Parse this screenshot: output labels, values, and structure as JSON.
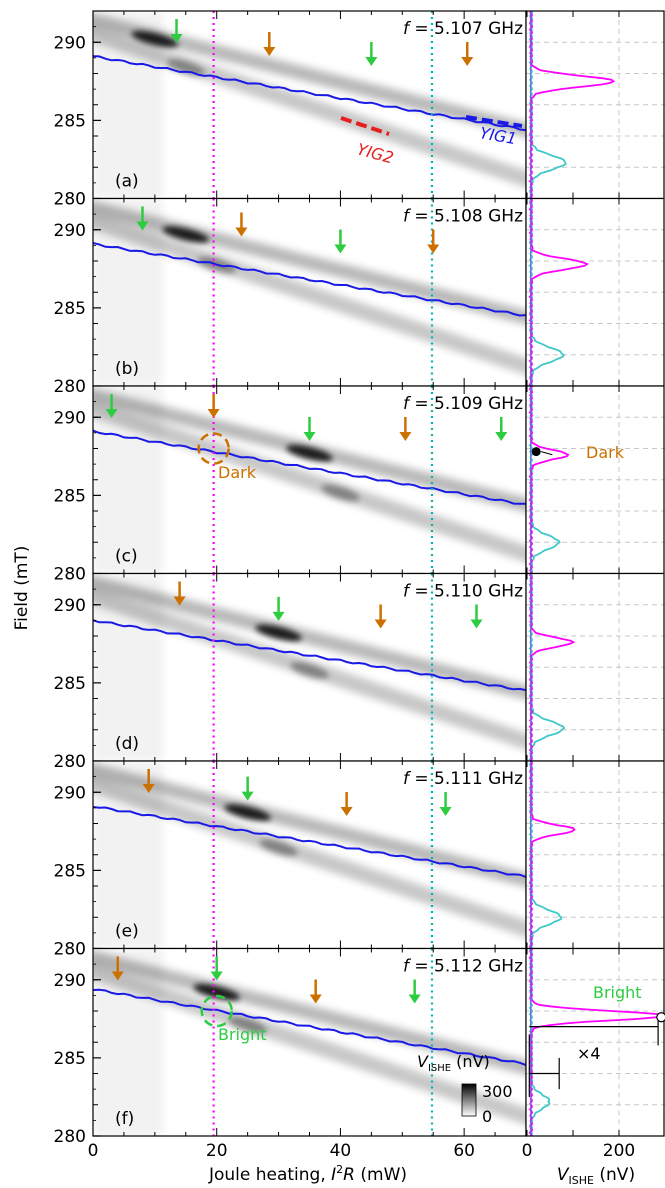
{
  "figure": {
    "ylabel": "Field (mT)",
    "xlabel_left_prefix": "Joule heating, ",
    "xlabel_left_math": "I",
    "xlabel_left_sup": "2",
    "xlabel_left_tail": "R",
    "xlabel_left_unit": " (mW)",
    "xlabel_right_math": "V",
    "xlabel_right_sub": "ISHE",
    "xlabel_right_unit": " (nV)",
    "colorbar_label_math": "V",
    "colorbar_label_sub": "ISHE",
    "colorbar_label_unit": " (nV)",
    "colorbar_max": "300",
    "colorbar_min": "0",
    "yig1_label": "YIG1",
    "yig2_label": "YIG2",
    "dark_label": "Dark",
    "bright_label": "Bright",
    "times4_label": "×4",
    "colors": {
      "yig1": "#1a1ae6",
      "yig2": "#e61e1e",
      "magenta": "#ff00ff",
      "cyan": "#00b4b4",
      "cyan_trace": "#40c8c8",
      "green": "#2ecc40",
      "orange": "#cc7000"
    }
  },
  "chart_data": [
    {
      "type": "heatmap",
      "panel": "(a)",
      "title_prefix": "f",
      "title_value": " = 5.107 GHz",
      "xlim": [
        0,
        70
      ],
      "ylim": [
        280,
        292
      ],
      "xticks": [
        "0",
        "20",
        "40",
        "60"
      ],
      "yticks": [
        "280",
        "285",
        "290"
      ],
      "blue_line": {
        "x": [
          0,
          70
        ],
        "y": [
          289.1,
          284.4
        ]
      },
      "bright_x": 10,
      "green_arrows_x": [
        13.5,
        45
      ],
      "orange_arrows_x": [
        28.5,
        60.5
      ]
    },
    {
      "type": "heatmap",
      "panel": "(b)",
      "title_prefix": "f",
      "title_value": " = 5.108 GHz",
      "xlim": [
        0,
        70
      ],
      "ylim": [
        280,
        292
      ],
      "xticks": [
        "0",
        "20",
        "40",
        "60"
      ],
      "yticks": [
        "280",
        "285",
        "290"
      ],
      "blue_line": {
        "x": [
          0,
          70
        ],
        "y": [
          289.1,
          284.5
        ]
      },
      "bright_x": 15,
      "green_arrows_x": [
        8,
        40
      ],
      "orange_arrows_x": [
        24,
        55
      ]
    },
    {
      "type": "heatmap",
      "panel": "(c)",
      "title_prefix": "f",
      "title_value": " = 5.109 GHz",
      "xlim": [
        0,
        70
      ],
      "ylim": [
        280,
        292
      ],
      "xticks": [
        "0",
        "20",
        "40",
        "60"
      ],
      "yticks": [
        "280",
        "285",
        "290"
      ],
      "blue_line": {
        "x": [
          0,
          70
        ],
        "y": [
          289.1,
          284.4
        ]
      },
      "bright_x": 35,
      "green_arrows_x": [
        3,
        35,
        66
      ],
      "orange_arrows_x": [
        19.5,
        50.5
      ],
      "dark_circle": {
        "x": 19.5,
        "y": 288
      }
    },
    {
      "type": "heatmap",
      "panel": "(d)",
      "title_prefix": "f",
      "title_value": " = 5.110 GHz",
      "xlim": [
        0,
        70
      ],
      "ylim": [
        280,
        292
      ],
      "xticks": [
        "0",
        "20",
        "40",
        "60"
      ],
      "yticks": [
        "280",
        "285",
        "290"
      ],
      "blue_line": {
        "x": [
          0,
          70
        ],
        "y": [
          289.0,
          284.5
        ]
      },
      "bright_x": 30,
      "green_arrows_x": [
        30,
        62
      ],
      "orange_arrows_x": [
        14,
        46.5
      ]
    },
    {
      "type": "heatmap",
      "panel": "(e)",
      "title_prefix": "f",
      "title_value": " = 5.111 GHz",
      "xlim": [
        0,
        70
      ],
      "ylim": [
        280,
        292
      ],
      "xticks": [
        "0",
        "20",
        "40",
        "60"
      ],
      "yticks": [
        "280",
        "285",
        "290"
      ],
      "blue_line": {
        "x": [
          0,
          70
        ],
        "y": [
          289.1,
          284.6
        ]
      },
      "bright_x": 25,
      "green_arrows_x": [
        25,
        57
      ],
      "orange_arrows_x": [
        9,
        41
      ]
    },
    {
      "type": "heatmap",
      "panel": "(f)",
      "title_prefix": "f",
      "title_value": " = 5.112 GHz",
      "xlim": [
        0,
        70
      ],
      "ylim": [
        280,
        292
      ],
      "xticks": [
        "0",
        "20",
        "40",
        "60"
      ],
      "yticks": [
        "280",
        "285",
        "290"
      ],
      "blue_line": {
        "x": [
          0,
          70
        ],
        "y": [
          289.4,
          284.6
        ]
      },
      "bright_x": 20,
      "green_arrows_x": [
        20,
        52
      ],
      "orange_arrows_x": [
        4,
        36
      ],
      "bright_circle": {
        "x": 20,
        "y": 288
      }
    },
    {
      "type": "line",
      "panel": "right profiles",
      "xlim": [
        0,
        300
      ],
      "xticks": [
        "0",
        "200"
      ],
      "ylim": [
        280,
        292
      ],
      "series_colors": [
        "magenta",
        "cyan"
      ],
      "magenta_peaks": [
        {
          "center": 287.5,
          "height": 180,
          "width": 0.35
        },
        {
          "center": 287.8,
          "height": 120,
          "width": 0.35
        },
        {
          "center": 287.6,
          "height": 80,
          "width": 0.3
        },
        {
          "center": 287.6,
          "height": 90,
          "width": 0.3
        },
        {
          "center": 287.6,
          "height": 95,
          "width": 0.3
        },
        {
          "center": 287.7,
          "height": 290,
          "width": 0.3
        }
      ],
      "cyan_peaks": [
        {
          "center": 282.3,
          "height": 75,
          "width": 0.45
        },
        {
          "center": 282.0,
          "height": 70,
          "width": 0.45
        },
        {
          "center": 282.0,
          "height": 60,
          "width": 0.45
        },
        {
          "center": 282.1,
          "height": 70,
          "width": 0.45
        },
        {
          "center": 282.0,
          "height": 65,
          "width": 0.45
        },
        {
          "center": 282.2,
          "height": 40,
          "width": 0.45
        }
      ],
      "dark_point": {
        "x": 20,
        "y": 287.8
      }
    }
  ]
}
